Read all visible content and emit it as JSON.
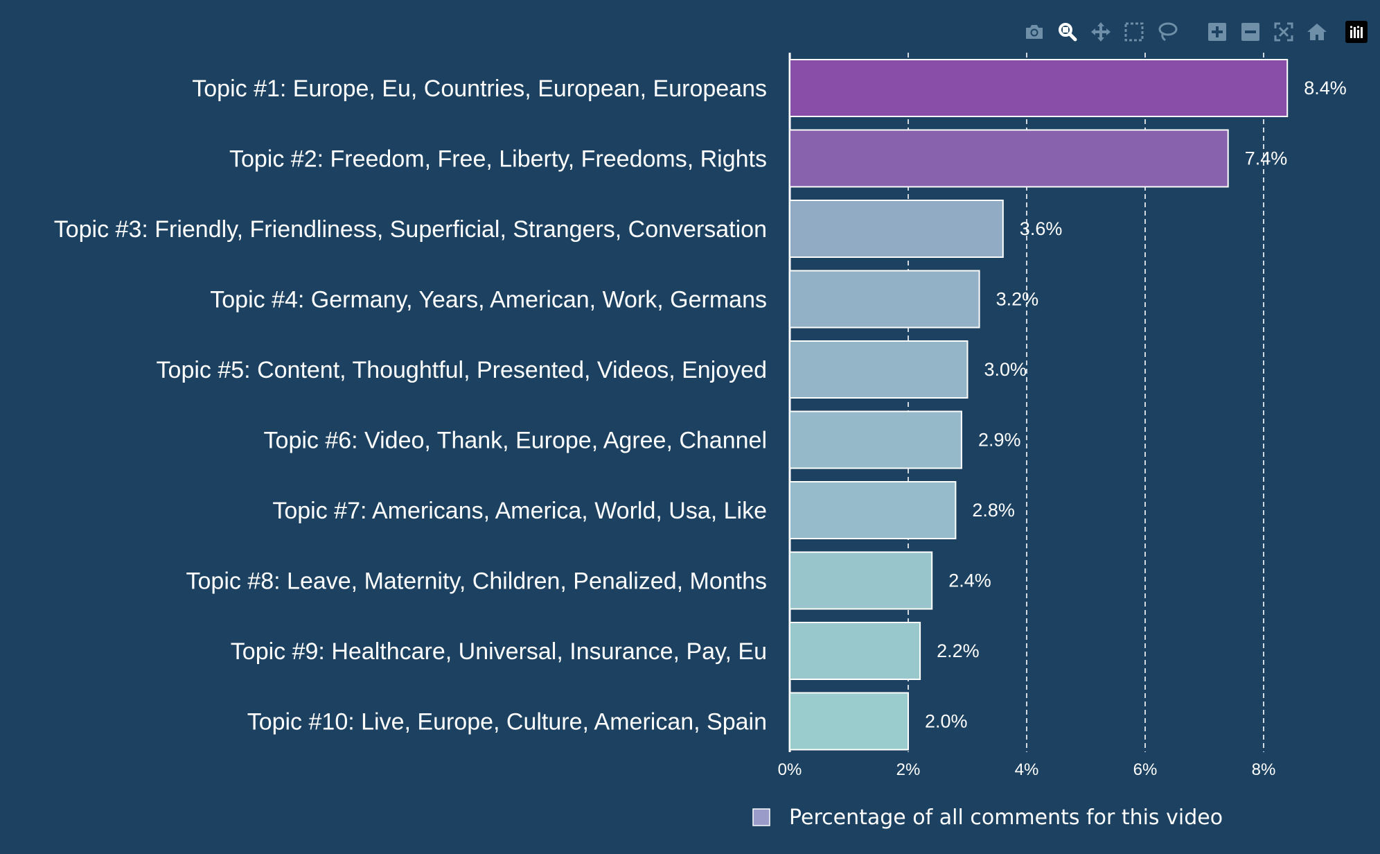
{
  "modebar": {
    "buttons": [
      {
        "name": "camera-icon",
        "title": "Download plot as a png"
      },
      {
        "name": "zoom-icon",
        "title": "Zoom"
      },
      {
        "name": "pan-icon",
        "title": "Pan"
      },
      {
        "name": "box-select-icon",
        "title": "Box Select"
      },
      {
        "name": "lasso-select-icon",
        "title": "Lasso Select"
      },
      {
        "name": "zoom-in-icon",
        "title": "Zoom in"
      },
      {
        "name": "zoom-out-icon",
        "title": "Zoom out"
      },
      {
        "name": "autoscale-icon",
        "title": "Autoscale"
      },
      {
        "name": "reset-axes-icon",
        "title": "Reset axes"
      },
      {
        "name": "plotly-logo-icon",
        "title": "Produced with Plotly"
      }
    ],
    "icon_color": "#6f8fa8",
    "active_color": "#ffffff"
  },
  "chart_data": {
    "type": "bar",
    "orientation": "horizontal",
    "categories": [
      "Topic #1: Europe, Eu, Countries, European, Europeans",
      "Topic #2: Freedom, Free, Liberty, Freedoms, Rights",
      "Topic #3: Friendly, Friendliness, Superficial, Strangers, Conversation",
      "Topic #4: Germany, Years, American, Work, Germans",
      "Topic #5: Content, Thoughtful, Presented, Videos, Enjoyed",
      "Topic #6: Video, Thank, Europe, Agree, Channel",
      "Topic #7: Americans, America, World, Usa, Like",
      "Topic #8: Leave, Maternity, Children, Penalized, Months",
      "Topic #9: Healthcare, Universal, Insurance, Pay, Eu",
      "Topic #10: Live, Europe, Culture, American, Spain"
    ],
    "series": [
      {
        "name": "Percentage of all comments for this video",
        "values": [
          8.4,
          7.4,
          3.6,
          3.2,
          3.0,
          2.9,
          2.8,
          2.4,
          2.2,
          2.0
        ],
        "labels": [
          "8.4%",
          "7.4%",
          "3.6%",
          "3.2%",
          "3.0%",
          "2.9%",
          "2.8%",
          "2.4%",
          "2.2%",
          "2.0%"
        ],
        "colors": [
          "#894ea8",
          "#8862ac",
          "#91abc4",
          "#93b1c6",
          "#94b5c8",
          "#95b9c9",
          "#96bbca",
          "#98c5cb",
          "#99c8cc",
          "#9acbcd"
        ]
      }
    ],
    "x_ticks": [
      "0%",
      "2%",
      "4%",
      "6%",
      "8%"
    ],
    "x_tick_values": [
      0,
      2,
      4,
      6,
      8
    ],
    "xlim": [
      0,
      8.4
    ],
    "grid": true,
    "legend": {
      "placement": "bottom",
      "swatch_color": "#9b9bc9"
    },
    "colors": {
      "background": "#1d4261",
      "text": "#ffffff",
      "grid": "#ffffff",
      "bar_outline": "#ffffff"
    }
  }
}
